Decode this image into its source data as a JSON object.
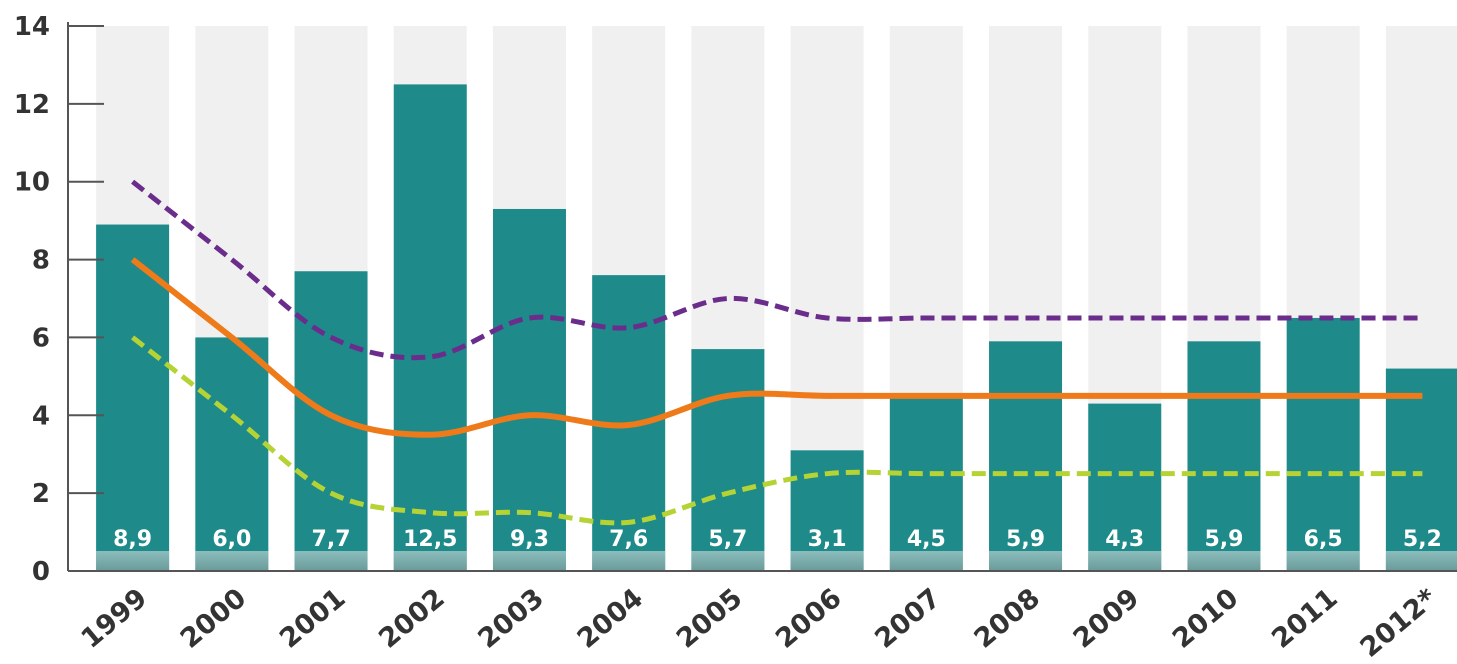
{
  "chart_data": {
    "type": "bar",
    "title": "",
    "xlabel": "",
    "ylabel": "",
    "categories": [
      "1999",
      "2000",
      "2001",
      "2002",
      "2003",
      "2004",
      "2005",
      "2006",
      "2007",
      "2008",
      "2009",
      "2010",
      "2011",
      "2012*"
    ],
    "values": [
      8.9,
      6.0,
      7.7,
      12.5,
      9.3,
      7.6,
      5.7,
      3.1,
      4.5,
      5.9,
      4.3,
      5.9,
      6.5,
      5.2
    ],
    "value_labels": [
      "8,9",
      "6,0",
      "7,7",
      "12,5",
      "9,3",
      "7,6",
      "5,7",
      "3,1",
      "4,5",
      "5,9",
      "4,3",
      "5,9",
      "6,5",
      "5,2"
    ],
    "ylim": [
      0,
      14
    ],
    "yticks": [
      "0",
      "2",
      "4",
      "6",
      "8",
      "10",
      "12",
      "14"
    ],
    "grid": false,
    "lines": [
      {
        "style": "dashed",
        "color": "#6b2d8c",
        "values": [
          10,
          8,
          6,
          5.5,
          6.5,
          6.25,
          7,
          6.5,
          6.5,
          6.5,
          6.5,
          6.5,
          6.5,
          6.5
        ]
      },
      {
        "style": "solid",
        "color": "#ee7a1a",
        "values": [
          8,
          6,
          4,
          3.5,
          4,
          3.75,
          4.5,
          4.5,
          4.5,
          4.5,
          4.5,
          4.5,
          4.5,
          4.5
        ]
      },
      {
        "style": "dashed",
        "color": "#b5d334",
        "values": [
          6,
          4,
          2,
          1.5,
          1.5,
          1.25,
          2,
          2.5,
          2.5,
          2.5,
          2.5,
          2.5,
          2.5,
          2.5
        ]
      }
    ],
    "colors": {
      "bar": "#1e8a8a",
      "background_column": "#f0f0f0",
      "axis": "#555555"
    }
  }
}
